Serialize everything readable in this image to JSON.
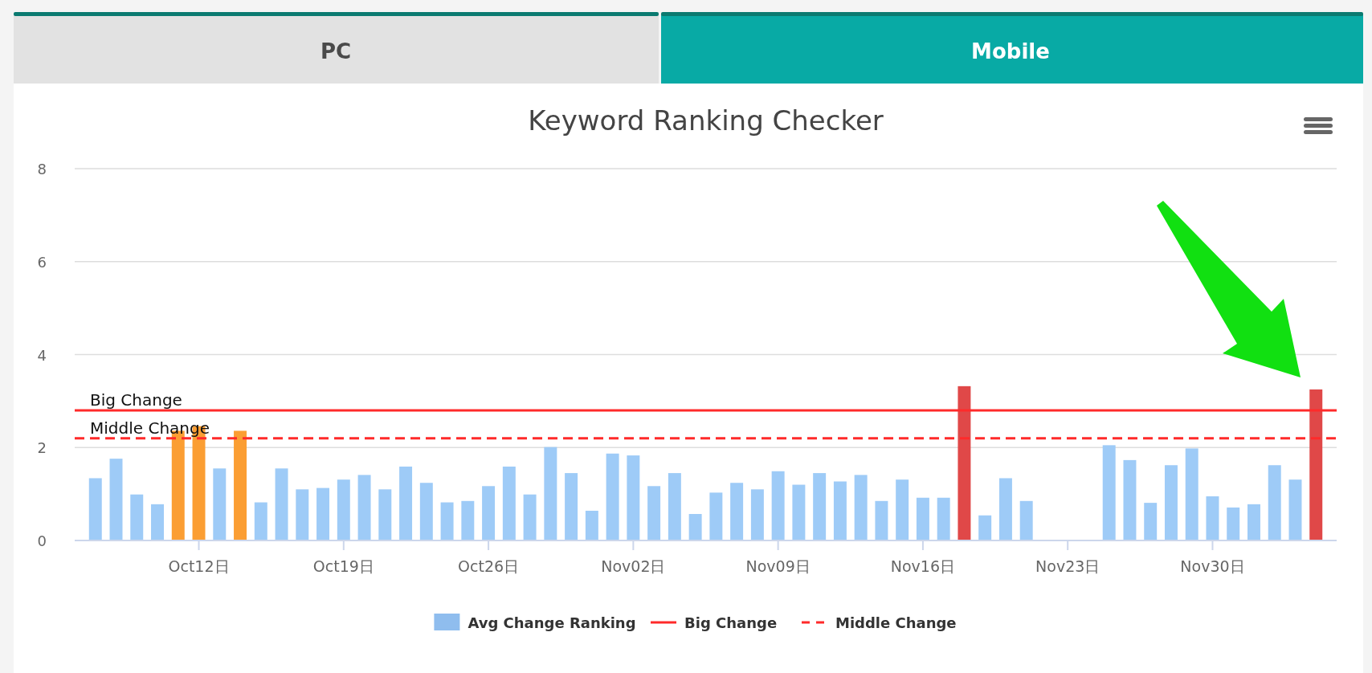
{
  "chart_data": {
    "type": "bar",
    "title": "Keyword Ranking Checker",
    "annotations": [
      "PC",
      "Mobile"
    ],
    "x": [
      "--10-07",
      "--10-08",
      "--10-09",
      "--10-10",
      "--10-11",
      "--10-12",
      "--10-13",
      "--10-14",
      "--10-15",
      "--10-16",
      "--10-17",
      "--10-18",
      "--10-19",
      "--10-20",
      "--10-21",
      "--10-22",
      "--10-23",
      "--10-24",
      "--10-25",
      "--10-26",
      "--10-27",
      "--10-28",
      "--10-29",
      "--10-30",
      "--10-31",
      "--11-01",
      "--11-02",
      "--11-03",
      "--11-04",
      "--11-05",
      "--11-06",
      "--11-07",
      "--11-08",
      "--11-09",
      "--11-10",
      "--11-11",
      "--11-12",
      "--11-13",
      "--11-14",
      "--11-15",
      "--11-16",
      "--11-17",
      "--11-18",
      "--11-19",
      "--11-20",
      "--11-21",
      "--11-22",
      "--11-23",
      "--11-24",
      "--11-25",
      "--11-26",
      "--11-27",
      "--11-28",
      "--11-29",
      "--11-30",
      "--12-01",
      "--12-02",
      "--12-03",
      "--12-04",
      "--12-05"
    ],
    "series": [
      {
        "name": "Avg Change Ranking",
        "color": "#8fbdee",
        "values": [
          1.34,
          1.76,
          0.99,
          0.78,
          2.36,
          2.46,
          1.55,
          2.36,
          0.82,
          1.55,
          1.1,
          1.13,
          1.31,
          1.41,
          1.1,
          1.59,
          1.24,
          0.82,
          0.85,
          1.17,
          1.59,
          0.99,
          2.01,
          1.45,
          0.64,
          1.87,
          1.83,
          1.17,
          1.45,
          0.57,
          1.03,
          1.24,
          1.1,
          1.49,
          1.2,
          1.45,
          1.27,
          1.41,
          0.85,
          1.31,
          0.92,
          0.92,
          3.32,
          0.54,
          1.34,
          0.85,
          null,
          null,
          null,
          2.05,
          1.73,
          0.81,
          1.62,
          1.98,
          0.95,
          0.71,
          0.78,
          1.62,
          1.31,
          3.25
        ],
        "colors": [
          "#9ecbf7",
          "#9ecbf7",
          "#9ecbf7",
          "#9ecbf7",
          "#fb9e33",
          "#fb9e33",
          "#9ecbf7",
          "#fb9e33",
          "#9ecbf7",
          "#9ecbf7",
          "#9ecbf7",
          "#9ecbf7",
          "#9ecbf7",
          "#9ecbf7",
          "#9ecbf7",
          "#9ecbf7",
          "#9ecbf7",
          "#9ecbf7",
          "#9ecbf7",
          "#9ecbf7",
          "#9ecbf7",
          "#9ecbf7",
          "#9ecbf7",
          "#9ecbf7",
          "#9ecbf7",
          "#9ecbf7",
          "#9ecbf7",
          "#9ecbf7",
          "#9ecbf7",
          "#9ecbf7",
          "#9ecbf7",
          "#9ecbf7",
          "#9ecbf7",
          "#9ecbf7",
          "#9ecbf7",
          "#9ecbf7",
          "#9ecbf7",
          "#9ecbf7",
          "#9ecbf7",
          "#9ecbf7",
          "#9ecbf7",
          "#9ecbf7",
          "#e04848",
          "#9ecbf7",
          "#9ecbf7",
          "#9ecbf7",
          "#9ecbf7",
          "#9ecbf7",
          "#9ecbf7",
          "#9ecbf7",
          "#9ecbf7",
          "#9ecbf7",
          "#9ecbf7",
          "#9ecbf7",
          "#9ecbf7",
          "#9ecbf7",
          "#9ecbf7",
          "#9ecbf7",
          "#9ecbf7",
          "#e04848"
        ]
      }
    ],
    "ref_lines": [
      {
        "axis": "y",
        "value": 2.8,
        "label": "Big Change",
        "color": "#ff2a2a",
        "line_style": "solid"
      },
      {
        "axis": "y",
        "value": 2.2,
        "label": "Middle Change",
        "color": "#ff2a2a",
        "line_style": "dashed"
      }
    ],
    "xlim": [
      "--10-06",
      "--12-06"
    ],
    "xticks": [
      {
        "value": "--10-12",
        "label": "Oct12日"
      },
      {
        "value": "--10-19",
        "label": "Oct19日"
      },
      {
        "value": "--10-26",
        "label": "Oct26日"
      },
      {
        "value": "--11-02",
        "label": "Nov02日"
      },
      {
        "value": "--11-09",
        "label": "Nov09日"
      },
      {
        "value": "--11-16",
        "label": "Nov16日"
      },
      {
        "value": "--11-23",
        "label": "Nov23日"
      },
      {
        "value": "--11-30",
        "label": "Nov30日"
      }
    ],
    "ylim": [
      0,
      8
    ],
    "yticks": [
      0,
      2,
      4,
      6,
      8
    ],
    "grid": "y",
    "legend": "bottom"
  }
}
